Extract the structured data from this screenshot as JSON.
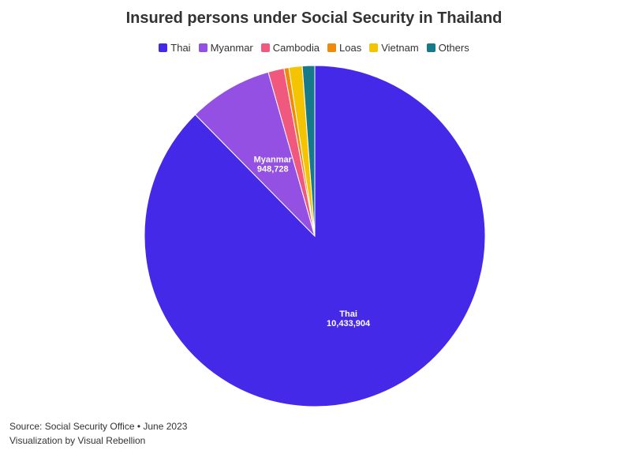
{
  "chart_data": {
    "type": "pie",
    "title": "Insured persons under Social Security in Thailand",
    "categories": [
      "Thai",
      "Myanmar",
      "Cambodia",
      "Loas",
      "Vietnam",
      "Others"
    ],
    "values": [
      10433904,
      948728,
      180000,
      55000,
      150000,
      140000
    ],
    "value_labels": [
      "10,433,904",
      "948,728",
      "",
      "",
      "",
      ""
    ],
    "show_labels": [
      true,
      true,
      false,
      false,
      false,
      false
    ],
    "colors": [
      "#4529E8",
      "#9350E3",
      "#F0587D",
      "#F08A0A",
      "#F5C400",
      "#167A8A"
    ],
    "legend_position": "top-center"
  },
  "footer": {
    "source": "Source: Social Security Office • June 2023",
    "credit": "Visualization by Visual Rebellion"
  }
}
